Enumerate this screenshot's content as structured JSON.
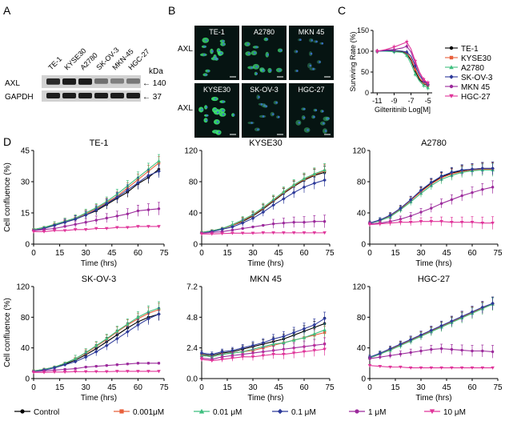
{
  "panel_letters": {
    "a": "A",
    "b": "B",
    "c": "C",
    "d": "D"
  },
  "western_blot": {
    "lanes": [
      "TE-1",
      "KYSE30",
      "A2780",
      "SK-OV-3",
      "MKN-45",
      "HGC-27"
    ],
    "rows": [
      "AXL",
      "GAPDH"
    ],
    "kda_label": "kDa",
    "markers": [
      "140",
      "37"
    ],
    "axl_intensity": [
      0.85,
      0.95,
      0.95,
      0.35,
      0.25,
      0.3
    ],
    "gapdh_intensity": [
      0.95,
      0.95,
      0.95,
      0.95,
      0.95,
      0.95
    ]
  },
  "microscopy": {
    "row_label": "AXL",
    "tiles": [
      "TE-1",
      "A2780",
      "MKN 45",
      "KYSE30",
      "SK-OV-3",
      "HGC-27"
    ],
    "green_level": [
      0.8,
      0.7,
      0.2,
      0.9,
      0.3,
      0.4
    ]
  },
  "legend_bottom": [
    "Control",
    "0.001μM",
    "0.01 μM",
    "0.1 μM",
    "1 μM",
    "10 μM"
  ],
  "colors": {
    "Control": "#000000",
    "0.001μM": "#e8603c",
    "0.01 μM": "#3fbf7f",
    "0.1 μM": "#2d3a9a",
    "1 μM": "#9c2a9c",
    "10 μM": "#e0359a"
  },
  "chart_data": [
    {
      "panel": "C",
      "type": "line",
      "xlabel": "Gilteritinib  Log[M]",
      "ylabel": "Surviving Rate (%)",
      "xlim": [
        -11.5,
        -4.5
      ],
      "ylim": [
        0,
        150
      ],
      "xticks": [
        "-11",
        "-9",
        "-7",
        "-5"
      ],
      "xtick_values": [
        -11,
        -9,
        -7,
        -5
      ],
      "yticks": [
        "0",
        "50",
        "100",
        "150"
      ],
      "legend_position": "right",
      "x": [
        -11,
        -10,
        -9,
        -8,
        -7.5,
        -7,
        -6.5,
        -6,
        -5.5,
        -5
      ],
      "series": [
        {
          "name": "TE-1",
          "color": "#000000",
          "values": [
            100,
            101,
            100,
            99,
            94,
            78,
            52,
            32,
            22,
            17
          ]
        },
        {
          "name": "KYSE30",
          "color": "#e8603c",
          "values": [
            100,
            102,
            101,
            100,
            96,
            82,
            57,
            36,
            24,
            18
          ]
        },
        {
          "name": "A2780",
          "color": "#3fbf7f",
          "values": [
            100,
            100,
            99,
            97,
            90,
            70,
            45,
            28,
            18,
            12
          ]
        },
        {
          "name": "SK-OV-3",
          "color": "#2d3a9a",
          "values": [
            100,
            101,
            102,
            100,
            98,
            88,
            65,
            42,
            28,
            20
          ]
        },
        {
          "name": "MKN 45",
          "color": "#9c2a9c",
          "values": [
            100,
            103,
            104,
            108,
            112,
            98,
            72,
            48,
            30,
            22
          ]
        },
        {
          "name": "HGC-27",
          "color": "#e0359a",
          "values": [
            100,
            104,
            110,
            118,
            122,
            105,
            76,
            50,
            32,
            24
          ]
        }
      ]
    },
    {
      "panel": "D",
      "title": "TE-1",
      "type": "line",
      "xlabel": "Time (hrs)",
      "ylabel": "Cell confluence (%)",
      "xlim": [
        0,
        75
      ],
      "ylim": [
        0,
        45
      ],
      "xticks": [
        "0",
        "15",
        "30",
        "45",
        "60",
        "75"
      ],
      "yticks": [
        "0",
        "15",
        "30",
        "45"
      ],
      "x": [
        0,
        6,
        12,
        18,
        24,
        30,
        36,
        42,
        48,
        54,
        60,
        66,
        72
      ],
      "series": [
        {
          "name": "Control",
          "values": [
            7,
            8,
            9,
            10.5,
            12,
            14,
            16,
            19,
            22,
            25,
            29,
            32,
            36
          ]
        },
        {
          "name": "0.001μM",
          "values": [
            7,
            8,
            9.5,
            11,
            12.5,
            14.5,
            17,
            20,
            23,
            27,
            31,
            35,
            39
          ]
        },
        {
          "name": "0.01 μM",
          "values": [
            7,
            8,
            9.5,
            11,
            12.5,
            15,
            17.5,
            20.5,
            24,
            28,
            32,
            36,
            40
          ]
        },
        {
          "name": "0.1 μM",
          "values": [
            6.5,
            7.5,
            9,
            10.5,
            12,
            14,
            16.5,
            19.5,
            22.5,
            26,
            29.5,
            33,
            35
          ]
        },
        {
          "name": "1 μM",
          "values": [
            6.5,
            7,
            7.5,
            8.5,
            9.5,
            10.5,
            11.5,
            12.5,
            13.5,
            14.5,
            16,
            16.5,
            17
          ]
        },
        {
          "name": "10 μM",
          "values": [
            6,
            6,
            6.5,
            6.5,
            7,
            7,
            7.5,
            7.5,
            8,
            8,
            8.5,
            8.5,
            8.5
          ]
        }
      ]
    },
    {
      "panel": "D",
      "title": "KYSE30",
      "type": "line",
      "xlabel": "Time (hrs)",
      "ylabel": "",
      "xlim": [
        0,
        75
      ],
      "ylim": [
        0,
        120
      ],
      "xticks": [
        "0",
        "15",
        "30",
        "45",
        "60",
        "75"
      ],
      "yticks": [
        "0",
        "40",
        "80",
        "120"
      ],
      "x": [
        0,
        6,
        12,
        18,
        24,
        30,
        36,
        42,
        48,
        54,
        60,
        66,
        72
      ],
      "series": [
        {
          "name": "Control",
          "values": [
            15,
            17,
            20,
            24,
            29,
            36,
            45,
            55,
            65,
            74,
            82,
            88,
            92
          ]
        },
        {
          "name": "0.001μM",
          "values": [
            15,
            17,
            20,
            24,
            30,
            37,
            46,
            56,
            66,
            75,
            83,
            89,
            94
          ]
        },
        {
          "name": "0.01 μM",
          "values": [
            15,
            17,
            20,
            25,
            31,
            38,
            47,
            57,
            67,
            76,
            84,
            90,
            95
          ]
        },
        {
          "name": "0.1 μM",
          "values": [
            14,
            16,
            19,
            22,
            27,
            33,
            41,
            50,
            58,
            66,
            73,
            78,
            82
          ]
        },
        {
          "name": "1 μM",
          "values": [
            14,
            15,
            16,
            18,
            20,
            22,
            24,
            26,
            27,
            28,
            28,
            29,
            29
          ]
        },
        {
          "name": "10 μM",
          "values": [
            13,
            13,
            13.5,
            14,
            14,
            14,
            14.5,
            14.5,
            14.5,
            14.5,
            14.5,
            14.5,
            14.5
          ]
        }
      ]
    },
    {
      "panel": "D",
      "title": "A2780",
      "type": "line",
      "xlabel": "Time (hrs)",
      "ylabel": "",
      "xlim": [
        0,
        75
      ],
      "ylim": [
        0,
        120
      ],
      "xticks": [
        "0",
        "15",
        "30",
        "45",
        "60",
        "75"
      ],
      "yticks": [
        "0",
        "40",
        "80",
        "120"
      ],
      "x": [
        0,
        6,
        12,
        18,
        24,
        30,
        36,
        42,
        48,
        54,
        60,
        66,
        72
      ],
      "series": [
        {
          "name": "Control",
          "values": [
            27,
            30,
            36,
            45,
            56,
            68,
            78,
            86,
            91,
            94,
            96,
            97,
            97
          ]
        },
        {
          "name": "0.001μM",
          "values": [
            27,
            30,
            36,
            45,
            56,
            67,
            77,
            85,
            90,
            93,
            95,
            96,
            96
          ]
        },
        {
          "name": "0.01 μM",
          "values": [
            27,
            30,
            35,
            44,
            54,
            65,
            75,
            83,
            88,
            92,
            94,
            95,
            95
          ]
        },
        {
          "name": "0.1 μM",
          "values": [
            27,
            31,
            37,
            46,
            57,
            69,
            79,
            87,
            92,
            95,
            96,
            97,
            97
          ]
        },
        {
          "name": "1 μM",
          "values": [
            26,
            27,
            29,
            32,
            36,
            41,
            46,
            52,
            57,
            62,
            66,
            70,
            73
          ]
        },
        {
          "name": "10 μM",
          "values": [
            25,
            26,
            27,
            28,
            28,
            29,
            29,
            29,
            28,
            28,
            28,
            27,
            27
          ]
        }
      ]
    },
    {
      "panel": "D",
      "title": "SK-OV-3",
      "type": "line",
      "xlabel": "Time (hrs)",
      "ylabel": "Cell confluence (%)",
      "xlim": [
        0,
        75
      ],
      "ylim": [
        0,
        120
      ],
      "xticks": [
        "0",
        "15",
        "30",
        "45",
        "60",
        "75"
      ],
      "yticks": [
        "0",
        "40",
        "80",
        "120"
      ],
      "x": [
        0,
        6,
        12,
        18,
        24,
        30,
        36,
        42,
        48,
        54,
        60,
        66,
        72
      ],
      "series": [
        {
          "name": "Control",
          "values": [
            10,
            12,
            15,
            19,
            24,
            31,
            39,
            48,
            57,
            66,
            74,
            80,
            84
          ]
        },
        {
          "name": "0.001μM",
          "values": [
            10,
            12,
            15,
            20,
            26,
            33,
            42,
            51,
            61,
            70,
            78,
            85,
            90
          ]
        },
        {
          "name": "0.01 μM",
          "values": [
            10,
            12,
            15,
            20,
            26,
            34,
            43,
            52,
            62,
            71,
            80,
            87,
            92
          ]
        },
        {
          "name": "0.1 μM",
          "values": [
            9,
            11,
            14,
            18,
            22,
            28,
            35,
            43,
            52,
            61,
            70,
            78,
            84
          ]
        },
        {
          "name": "1 μM",
          "values": [
            9,
            10,
            11,
            12,
            13,
            15,
            16,
            17,
            18,
            19,
            20,
            20,
            20
          ]
        },
        {
          "name": "10 μM",
          "values": [
            8,
            8,
            8.5,
            8.5,
            9,
            9,
            9,
            9,
            9.5,
            9.5,
            9.5,
            9.5,
            9.5
          ]
        }
      ]
    },
    {
      "panel": "D",
      "title": "MKN 45",
      "type": "line",
      "xlabel": "Time (hrs)",
      "ylabel": "",
      "xlim": [
        0,
        75
      ],
      "ylim": [
        0,
        7.2
      ],
      "xticks": [
        "0",
        "15",
        "30",
        "45",
        "60",
        "75"
      ],
      "yticks": [
        "0.0",
        "2.4",
        "4.8",
        "7.2"
      ],
      "x": [
        0,
        6,
        12,
        18,
        24,
        30,
        36,
        42,
        48,
        54,
        60,
        66,
        72
      ],
      "series": [
        {
          "name": "Control",
          "values": [
            1.9,
            1.8,
            2.0,
            2.1,
            2.3,
            2.5,
            2.7,
            2.9,
            3.1,
            3.4,
            3.7,
            4.0,
            4.3
          ]
        },
        {
          "name": "0.001μM",
          "values": [
            1.8,
            1.7,
            1.9,
            2.0,
            2.1,
            2.2,
            2.4,
            2.6,
            2.8,
            3.0,
            3.2,
            3.4,
            3.6
          ]
        },
        {
          "name": "0.01 μM",
          "values": [
            1.8,
            1.7,
            1.9,
            2.0,
            2.1,
            2.3,
            2.5,
            2.7,
            2.8,
            3.0,
            3.2,
            3.5,
            3.8
          ]
        },
        {
          "name": "0.1 μM",
          "values": [
            2.0,
            1.9,
            2.1,
            2.2,
            2.4,
            2.6,
            2.8,
            3.1,
            3.3,
            3.6,
            3.9,
            4.2,
            4.7
          ]
        },
        {
          "name": "1 μM",
          "values": [
            1.6,
            1.5,
            1.7,
            1.8,
            1.9,
            2.0,
            2.1,
            2.2,
            2.3,
            2.4,
            2.5,
            2.6,
            2.7
          ]
        },
        {
          "name": "10 μM",
          "values": [
            1.5,
            1.4,
            1.5,
            1.6,
            1.7,
            1.7,
            1.8,
            1.9,
            1.9,
            2.0,
            2.1,
            2.2,
            2.3
          ]
        }
      ]
    },
    {
      "panel": "D",
      "title": "HGC-27",
      "type": "line",
      "xlabel": "Time (hrs)",
      "ylabel": "",
      "xlim": [
        0,
        75
      ],
      "ylim": [
        0,
        120
      ],
      "xticks": [
        "0",
        "15",
        "30",
        "45",
        "60",
        "75"
      ],
      "yticks": [
        "0",
        "40",
        "80",
        "120"
      ],
      "x": [
        0,
        6,
        12,
        18,
        24,
        30,
        36,
        42,
        48,
        54,
        60,
        66,
        72
      ],
      "series": [
        {
          "name": "Control",
          "values": [
            27,
            32,
            38,
            44,
            50,
            56,
            62,
            68,
            74,
            80,
            86,
            92,
            98
          ]
        },
        {
          "name": "0.001μM",
          "values": [
            27,
            32,
            38,
            44,
            50,
            56,
            62,
            68,
            74,
            80,
            86,
            92,
            97
          ]
        },
        {
          "name": "0.01 μM",
          "values": [
            27,
            32,
            37,
            43,
            49,
            55,
            61,
            67,
            73,
            79,
            85,
            91,
            97
          ]
        },
        {
          "name": "0.1 μM",
          "values": [
            28,
            33,
            39,
            45,
            51,
            57,
            63,
            69,
            75,
            81,
            87,
            93,
            98
          ]
        },
        {
          "name": "1 μM",
          "values": [
            26,
            28,
            30,
            32,
            34,
            36,
            38,
            39,
            38,
            37,
            36,
            36,
            35
          ]
        },
        {
          "name": "10 μM",
          "values": [
            17,
            16,
            15,
            15,
            14,
            14,
            14,
            14,
            14,
            14,
            14,
            14,
            14
          ]
        }
      ]
    }
  ]
}
